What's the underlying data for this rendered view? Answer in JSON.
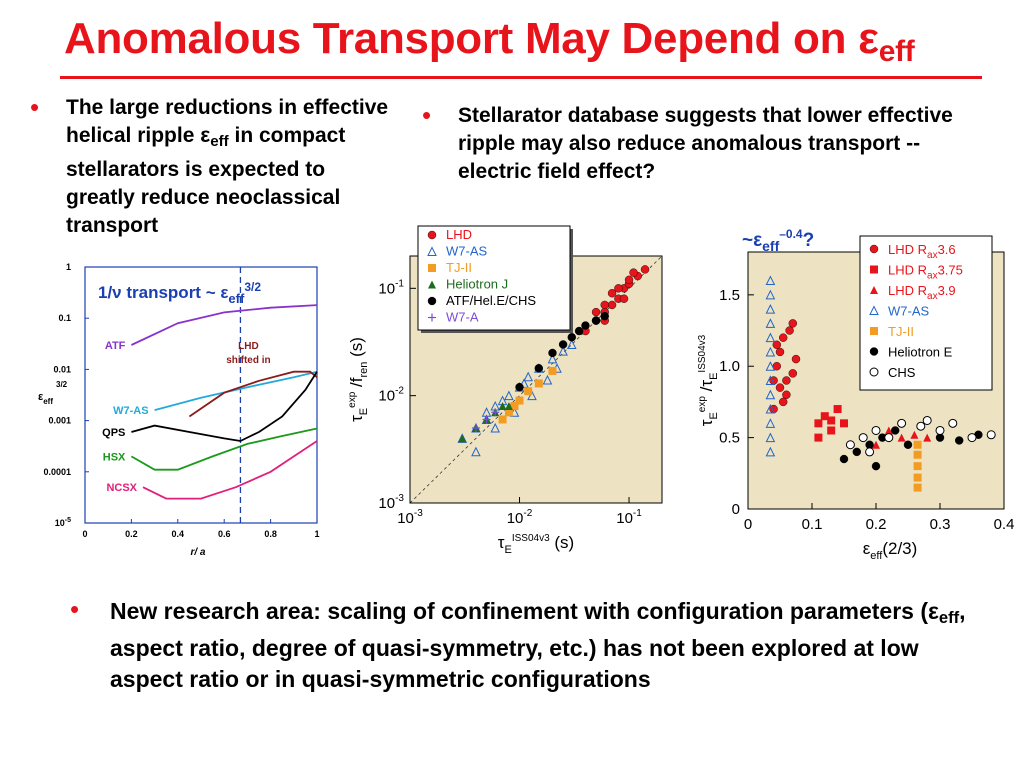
{
  "title": {
    "main": "Anomalous Transport May Depend on ",
    "symbol": "ε",
    "subscript": "eff"
  },
  "bullets": {
    "b1": {
      "t1": "The large reductions in effective helical ripple ",
      "sym": "ε",
      "sub": "eff",
      "t2": " in compact stellarators is expected to greatly reduce neoclassical transport"
    },
    "b2": {
      "text": "Stellarator database suggests that lower effective ripple may also reduce anomalous transport -- electric field effect?"
    },
    "b3": {
      "t1": "New research area: scaling of confinement with configuration parameters (",
      "sym": "ε",
      "sub": "eff",
      "t2": ", aspect ratio, degree of quasi-symmetry, etc.) has not been explored at low aspect ratio or in quasi-symmetric configurations"
    }
  },
  "colors": {
    "accent": "#e8141c",
    "plot_bg": "#ede3c3",
    "purple": "#8833cc",
    "cyan": "#22aadd",
    "darkred": "#8b1a1a",
    "green": "#1a9a1a",
    "magenta": "#e0207a",
    "blue": "#2266cc",
    "orange": "#f39c24",
    "dkgreen": "#1e6b1e"
  },
  "chart_data": [
    {
      "type": "line",
      "ylog": true,
      "title": {
        "pre": "1/ν transport ~ ε",
        "sub": "eff",
        "sup": "3/2"
      },
      "xlabel": "r/ a",
      "ylabel": {
        "base": "ε",
        "sub": "eff",
        "sup": "3/2"
      },
      "xlim": [
        0,
        1
      ],
      "ylim": [
        1e-05,
        1
      ],
      "x_ticks": [
        "0",
        "0.2",
        "0.4",
        "0.6",
        "0.8",
        "1"
      ],
      "y_ticks": [
        {
          "v": 1,
          "label": "1"
        },
        {
          "v": 0.1,
          "label": "0.1"
        },
        {
          "v": 0.01,
          "label": "0.01"
        },
        {
          "v": 0.001,
          "label": "0.001"
        },
        {
          "v": 0.0001,
          "label": "0.0001"
        },
        {
          "v": 1e-05,
          "label": "10",
          "sup": "-5"
        }
      ],
      "vline": {
        "x": 0.67,
        "label1": "LHD",
        "label2": "shifted in"
      },
      "series": [
        {
          "name": "ATF",
          "color": "#8833cc",
          "x": [
            0.2,
            0.4,
            0.6,
            0.8,
            1.0
          ],
          "y": [
            0.03,
            0.08,
            0.13,
            0.16,
            0.18
          ]
        },
        {
          "name": "W7-AS",
          "color": "#22aadd",
          "x": [
            0.3,
            0.5,
            0.7,
            0.9,
            1.0
          ],
          "y": [
            0.0016,
            0.0028,
            0.0045,
            0.007,
            0.009
          ]
        },
        {
          "name": "",
          "color": "#8b1a1a",
          "x": [
            0.45,
            0.6,
            0.75,
            0.9,
            0.97,
            1.0
          ],
          "y": [
            0.0012,
            0.0035,
            0.006,
            0.009,
            0.009,
            0.007
          ]
        },
        {
          "name": "QPS",
          "color": "#000000",
          "x": [
            0.2,
            0.3,
            0.45,
            0.6,
            0.67,
            0.75,
            0.85,
            0.95,
            1.0
          ],
          "y": [
            0.0006,
            0.0008,
            0.0006,
            0.00045,
            0.0004,
            0.0006,
            0.0012,
            0.004,
            0.009
          ]
        },
        {
          "name": "HSX",
          "color": "#1a9a1a",
          "x": [
            0.2,
            0.3,
            0.4,
            0.55,
            0.7,
            0.85,
            1.0
          ],
          "y": [
            0.0002,
            0.00011,
            0.00011,
            0.0002,
            0.00035,
            0.0005,
            0.0007
          ]
        },
        {
          "name": "NCSX",
          "color": "#e0207a",
          "x": [
            0.25,
            0.35,
            0.5,
            0.65,
            0.8,
            0.9,
            1.0
          ],
          "y": [
            5e-05,
            3e-05,
            3e-05,
            5e-05,
            0.0001,
            0.0002,
            0.0004
          ]
        }
      ]
    },
    {
      "type": "scatter",
      "xlog": true,
      "ylog": true,
      "xlim": [
        0.001,
        0.2
      ],
      "ylim": [
        0.001,
        0.2
      ],
      "x_ticks": [
        {
          "v": 0.001,
          "base": "10",
          "sup": "-3"
        },
        {
          "v": 0.01,
          "base": "10",
          "sup": "-2"
        },
        {
          "v": 0.1,
          "base": "10",
          "sup": "-1"
        }
      ],
      "y_ticks": [
        {
          "v": 0.001,
          "base": "10",
          "sup": "-3"
        },
        {
          "v": 0.01,
          "base": "10",
          "sup": "-2"
        },
        {
          "v": 0.1,
          "base": "10",
          "sup": "-1"
        }
      ],
      "xlabel": {
        "sym": "τ",
        "sub": "E",
        "sup": "ISS04v3",
        "unit": " (s)"
      },
      "ylabel": {
        "sym": "τ",
        "sub": "E",
        "sup": "exp",
        "mid": " /f",
        "sub2": "ren",
        "unit": " (s)"
      },
      "legend": [
        "LHD",
        "W7-AS",
        "TJ-II",
        "Heliotron J",
        "ATF/Hel.E/CHS",
        "W7-A"
      ],
      "series": [
        {
          "name": "LHD",
          "color": "#e8141c",
          "marker": "circle",
          "x": [
            0.04,
            0.05,
            0.06,
            0.07,
            0.08,
            0.09,
            0.1,
            0.12,
            0.14,
            0.05,
            0.06,
            0.07,
            0.08,
            0.1,
            0.11,
            0.06,
            0.09
          ],
          "y": [
            0.04,
            0.05,
            0.06,
            0.07,
            0.08,
            0.1,
            0.11,
            0.13,
            0.15,
            0.06,
            0.07,
            0.09,
            0.1,
            0.12,
            0.14,
            0.05,
            0.08
          ]
        },
        {
          "name": "W7-AS",
          "color": "#2266cc",
          "marker": "triangle-open",
          "x": [
            0.003,
            0.004,
            0.005,
            0.006,
            0.008,
            0.01,
            0.012,
            0.015,
            0.02,
            0.025,
            0.03,
            0.004,
            0.006,
            0.009,
            0.013,
            0.018,
            0.022,
            0.005,
            0.007,
            0.011
          ],
          "y": [
            0.004,
            0.005,
            0.006,
            0.008,
            0.01,
            0.012,
            0.015,
            0.018,
            0.022,
            0.026,
            0.03,
            0.003,
            0.005,
            0.007,
            0.01,
            0.014,
            0.018,
            0.007,
            0.009,
            0.013
          ]
        },
        {
          "name": "TJ-II",
          "color": "#f39c24",
          "marker": "square",
          "x": [
            0.007,
            0.008,
            0.009,
            0.01,
            0.012,
            0.015,
            0.02
          ],
          "y": [
            0.006,
            0.007,
            0.008,
            0.009,
            0.011,
            0.013,
            0.017
          ]
        },
        {
          "name": "Heliotron J",
          "color": "#1e6b1e",
          "marker": "triangle",
          "x": [
            0.003,
            0.004,
            0.005,
            0.006,
            0.007,
            0.008
          ],
          "y": [
            0.004,
            0.005,
            0.006,
            0.007,
            0.008,
            0.008
          ]
        },
        {
          "name": "ATF/Hel.E/CHS",
          "color": "#000000",
          "marker": "circle",
          "x": [
            0.02,
            0.025,
            0.03,
            0.035,
            0.04,
            0.05,
            0.01,
            0.015,
            0.06
          ],
          "y": [
            0.025,
            0.03,
            0.035,
            0.04,
            0.045,
            0.05,
            0.012,
            0.018,
            0.055
          ]
        },
        {
          "name": "W7-A",
          "color": "#7a4dd8",
          "marker": "plus",
          "x": [
            0.004,
            0.005,
            0.006
          ],
          "y": [
            0.005,
            0.006,
            0.007
          ]
        }
      ]
    },
    {
      "type": "scatter",
      "xlim": [
        0,
        0.4
      ],
      "ylim": [
        0,
        1.8
      ],
      "x_ticks": [
        "0",
        "0.1",
        "0.2",
        "0.3",
        "0.4"
      ],
      "y_ticks": [
        "0",
        "0.5",
        "1.0",
        "1.5"
      ],
      "xlabel": {
        "sym": "ε",
        "sub": "eff",
        "rest": "(2/3)"
      },
      "ylabel": {
        "sym1": "τ",
        "sub1": "E",
        "sup1": "exp",
        "mid": " /τ",
        "sub2": "E",
        "sup2": "ISS04v3"
      },
      "annotation": {
        "pre": "~ε",
        "sub": "eff",
        "sup": "–0.4",
        "post": "?"
      },
      "legend": [
        {
          "name": "LHD R",
          "sub": "ax",
          "tail": "3.6"
        },
        {
          "name": "LHD R",
          "sub": "ax",
          "tail": "3.75"
        },
        {
          "name": "LHD R",
          "sub": "ax",
          "tail": "3.9"
        },
        {
          "name": "W7-AS"
        },
        {
          "name": "TJ-II"
        },
        {
          "name": "Heliotron E"
        },
        {
          "name": "CHS"
        }
      ],
      "series": [
        {
          "name": "LHD Rax3.6",
          "color": "#e8141c",
          "marker": "circle",
          "x": [
            0.04,
            0.045,
            0.05,
            0.055,
            0.06,
            0.065,
            0.07,
            0.075,
            0.04,
            0.05,
            0.06,
            0.07,
            0.045,
            0.055
          ],
          "y": [
            0.9,
            1.0,
            1.1,
            1.2,
            0.8,
            1.25,
            0.95,
            1.05,
            0.7,
            0.85,
            0.9,
            1.3,
            1.15,
            0.75
          ]
        },
        {
          "name": "LHD Rax3.75",
          "color": "#e8141c",
          "marker": "square",
          "x": [
            0.11,
            0.12,
            0.13,
            0.14,
            0.15,
            0.11,
            0.13
          ],
          "y": [
            0.6,
            0.65,
            0.55,
            0.7,
            0.6,
            0.5,
            0.62
          ]
        },
        {
          "name": "LHD Rax3.9",
          "color": "#e8141c",
          "marker": "triangle",
          "x": [
            0.2,
            0.22,
            0.24,
            0.26,
            0.28
          ],
          "y": [
            0.45,
            0.55,
            0.5,
            0.52,
            0.5
          ]
        },
        {
          "name": "W7-AS",
          "color": "#2266cc",
          "marker": "triangle-open",
          "x": [
            0.035,
            0.035,
            0.035,
            0.035,
            0.035,
            0.035,
            0.035,
            0.035,
            0.035,
            0.035,
            0.035,
            0.035,
            0.035
          ],
          "y": [
            0.4,
            0.5,
            0.6,
            0.7,
            0.8,
            0.9,
            1.0,
            1.1,
            1.2,
            1.3,
            1.4,
            1.5,
            1.6
          ]
        },
        {
          "name": "TJ-II",
          "color": "#f39c24",
          "marker": "square",
          "x": [
            0.265,
            0.265,
            0.265,
            0.265,
            0.265
          ],
          "y": [
            0.15,
            0.22,
            0.3,
            0.38,
            0.45
          ]
        },
        {
          "name": "Heliotron E",
          "color": "#000000",
          "marker": "circle",
          "x": [
            0.15,
            0.17,
            0.19,
            0.21,
            0.23,
            0.3,
            0.33,
            0.36,
            0.2,
            0.25
          ],
          "y": [
            0.35,
            0.4,
            0.45,
            0.5,
            0.55,
            0.5,
            0.48,
            0.52,
            0.3,
            0.45
          ]
        },
        {
          "name": "CHS",
          "color": "#000000",
          "marker": "circle-open",
          "x": [
            0.16,
            0.18,
            0.2,
            0.22,
            0.24,
            0.27,
            0.3,
            0.32,
            0.35,
            0.38,
            0.19,
            0.28
          ],
          "y": [
            0.45,
            0.5,
            0.55,
            0.5,
            0.6,
            0.58,
            0.55,
            0.6,
            0.5,
            0.52,
            0.4,
            0.62
          ]
        }
      ]
    }
  ]
}
